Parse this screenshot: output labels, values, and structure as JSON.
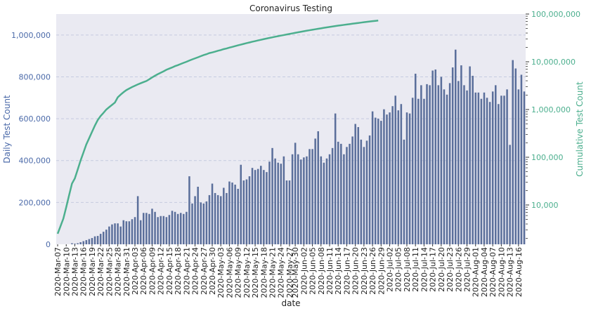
{
  "chart_data": {
    "type": "bar",
    "title": "Coronavirus Testing",
    "xlabel": "date",
    "ylabel": "Daily Test Count",
    "ylabel_right": "Cumulative Test Count",
    "ylim": [
      0,
      1100000
    ],
    "y_ticks": [
      0,
      200000,
      400000,
      600000,
      800000,
      1000000
    ],
    "y_tick_labels": [
      "0",
      "200,000",
      "400,000",
      "600,000",
      "800,000",
      "1,000,000"
    ],
    "y_right_scale": "log",
    "y_right_lim": [
      1500,
      100000000
    ],
    "y_right_ticks": [
      10000,
      100000,
      1000000,
      10000000,
      100000000
    ],
    "y_right_tick_labels": [
      "10,000",
      "100,000",
      "1,000,000",
      "10,000,000",
      "100,000,000"
    ],
    "grid": true,
    "x_tick_labels": [
      "2020-Mar-07",
      "2020-Mar-10",
      "2020-Mar-13",
      "2020-Mar-16",
      "2020-Mar-19",
      "2020-Mar-22",
      "2020-Mar-25",
      "2020-Mar-28",
      "2020-Mar-31",
      "2020-Apr-03",
      "2020-Apr-06",
      "2020-Apr-09",
      "2020-Apr-12",
      "2020-Apr-15",
      "2020-Apr-18",
      "2020-Apr-21",
      "2020-Apr-24",
      "2020-Apr-27",
      "2020-Apr-30",
      "2020-May-03",
      "2020-May-06",
      "2020-May-09",
      "2020-May-12",
      "2020-May-15",
      "2020-May-18",
      "2020-May-21",
      "2020-May-24",
      "2020-May-27",
      "2020-May-30",
      "2020-Jun-02",
      "2020-Jun-05",
      "2020-Jun-08",
      "2020-Jun-11",
      "2020-Jun-14",
      "2020-Jun-17",
      "2020-Jun-20",
      "2020-Jun-23",
      "2020-Jun-26",
      "2020-Jun-29",
      "2020-Jul-02",
      "2020-Jul-05",
      "2020-Jul-08",
      "2020-Jul-11",
      "2020-Jul-14",
      "2020-Jul-17",
      "2020-Jul-20",
      "2020-Jul-23",
      "2020-Jul-26",
      "2020-Jul-29",
      "2020-Aug-01",
      "2020-Aug-04",
      "2020-Aug-07",
      "2020-Aug-10",
      "2020-Aug-13",
      "2020-Aug-16"
    ],
    "x_start": "2020-Mar-07",
    "series": [
      {
        "kind": "bar",
        "color": "#5b6f9b",
        "values": [
          0,
          0,
          0,
          0,
          0,
          5000,
          3000,
          5000,
          10000,
          15000,
          20000,
          25000,
          30000,
          38000,
          40000,
          50000,
          60000,
          70000,
          85000,
          95000,
          100000,
          100000,
          85000,
          115000,
          110000,
          110000,
          120000,
          130000,
          230000,
          115000,
          150000,
          150000,
          145000,
          170000,
          155000,
          130000,
          135000,
          135000,
          130000,
          140000,
          160000,
          155000,
          145000,
          150000,
          145000,
          155000,
          325000,
          195000,
          230000,
          275000,
          200000,
          195000,
          205000,
          235000,
          290000,
          245000,
          235000,
          230000,
          270000,
          245000,
          300000,
          295000,
          285000,
          265000,
          380000,
          305000,
          310000,
          325000,
          365000,
          355000,
          360000,
          375000,
          355000,
          345000,
          395000,
          460000,
          410000,
          390000,
          385000,
          420000,
          305000,
          305000,
          430000,
          485000,
          430000,
          405000,
          415000,
          420000,
          455000,
          455000,
          505000,
          540000,
          420000,
          390000,
          410000,
          430000,
          460000,
          625000,
          490000,
          480000,
          430000,
          465000,
          480000,
          515000,
          575000,
          560000,
          500000,
          465000,
          495000,
          520000,
          635000,
          605000,
          600000,
          590000,
          645000,
          620000,
          630000,
          660000,
          710000,
          640000,
          670000,
          500000,
          630000,
          625000,
          700000,
          815000,
          695000,
          760000,
          695000,
          765000,
          760000,
          830000,
          835000,
          760000,
          800000,
          740000,
          715000,
          770000,
          845000,
          930000,
          780000,
          855000,
          760000,
          735000,
          850000,
          805000,
          725000,
          725000,
          695000,
          725000,
          700000,
          680000,
          730000,
          760000,
          670000,
          710000,
          710000,
          740000,
          475000,
          880000,
          840000,
          740000,
          810000,
          730000
        ]
      },
      {
        "kind": "line",
        "axis": "right",
        "color": "#4caf8e",
        "values": [
          2500,
          3600,
          5200,
          9000,
          16000,
          28000,
          36000,
          55000,
          85000,
          125000,
          185000,
          250000,
          340000,
          460000,
          600000,
          730000,
          850000,
          1000000,
          1120000,
          1250000,
          1400000,
          1800000,
          2050000,
          2300000,
          2550000,
          2750000,
          2950000,
          3150000,
          3350000,
          3550000,
          3750000,
          3950000,
          4300000,
          4700000,
          5100000,
          5500000,
          5900000,
          6300000,
          6800000,
          7200000,
          7600000,
          8100000,
          8500000,
          9000000,
          9500000,
          10000000,
          10600000,
          11200000,
          11800000,
          12400000,
          13100000,
          13800000,
          14400000,
          15200000,
          15700000,
          16300000,
          17000000,
          17600000,
          18400000,
          19000000,
          19800000,
          20500000,
          21300000,
          22100000,
          22900000,
          23700000,
          24600000,
          25400000,
          26300000,
          27100000,
          28000000,
          28900000,
          29800000,
          30700000,
          31600000,
          32500000,
          33500000,
          34400000,
          35400000,
          36300000,
          37300000,
          38300000,
          39300000,
          40400000,
          41400000,
          42500000,
          43600000,
          44700000,
          45800000,
          46900000,
          48000000,
          49100000,
          50200000,
          51400000,
          52500000,
          53600000,
          54800000,
          56000000,
          57100000,
          58200000,
          59300000,
          60400000,
          61500000,
          62700000,
          63800000,
          65000000,
          66200000,
          67400000,
          68500000,
          69700000,
          70900000,
          72000000,
          73100000
        ]
      }
    ]
  }
}
